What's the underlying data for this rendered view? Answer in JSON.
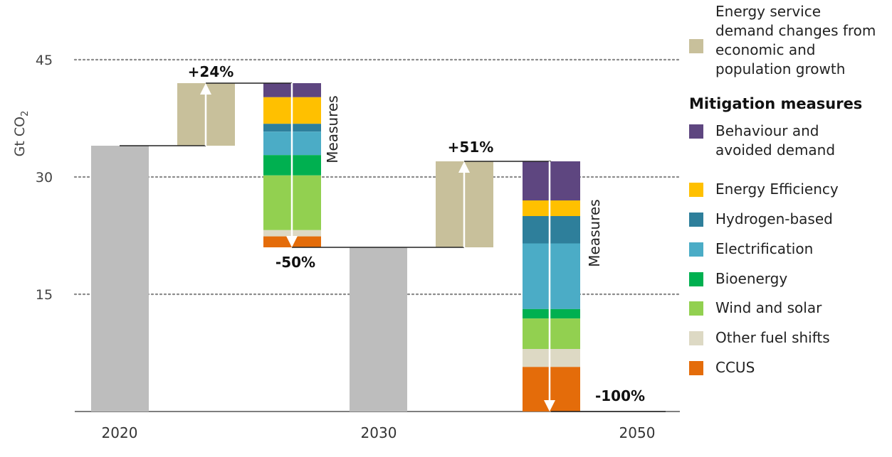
{
  "chart_data": {
    "type": "waterfall",
    "title": "",
    "ylabel": "Gt CO",
    "ylabel_sub": "2",
    "ylim": [
      0,
      45
    ],
    "yticks": [
      15,
      30,
      45
    ],
    "grid": "dotted",
    "x_labels": [
      "2020",
      "2030",
      "2050"
    ],
    "bars": [
      {
        "name": "2020",
        "type": "total",
        "value": 34
      },
      {
        "name": "growth-2030",
        "type": "increase",
        "from": 34,
        "to": 42,
        "label": "+24%"
      },
      {
        "name": "measures-2030",
        "type": "reduction",
        "from": 42,
        "to": 21,
        "label": "-50%",
        "side_label": "Measures",
        "segments": [
          {
            "key": "behaviour",
            "value": 1.8
          },
          {
            "key": "efficiency",
            "value": 3.4
          },
          {
            "key": "hydrogen",
            "value": 1.0
          },
          {
            "key": "electrification",
            "value": 3.0
          },
          {
            "key": "bioenergy",
            "value": 2.6
          },
          {
            "key": "wind_solar",
            "value": 7.0
          },
          {
            "key": "other",
            "value": 0.8
          },
          {
            "key": "ccus",
            "value": 1.4
          }
        ]
      },
      {
        "name": "2030",
        "type": "total",
        "value": 21
      },
      {
        "name": "growth-2050",
        "type": "increase",
        "from": 21,
        "to": 32,
        "label": "+51%"
      },
      {
        "name": "measures-2050",
        "type": "reduction",
        "from": 32,
        "to": 0,
        "label": "-100%",
        "side_label": "Measures",
        "segments": [
          {
            "key": "behaviour",
            "value": 5.0
          },
          {
            "key": "efficiency",
            "value": 2.0
          },
          {
            "key": "hydrogen",
            "value": 3.5
          },
          {
            "key": "electrification",
            "value": 8.4
          },
          {
            "key": "bioenergy",
            "value": 1.2
          },
          {
            "key": "wind_solar",
            "value": 3.9
          },
          {
            "key": "other",
            "value": 2.3
          },
          {
            "key": "ccus",
            "value": 5.7
          }
        ]
      }
    ]
  },
  "colors": {
    "total": "#bdbdbd",
    "growth": "#c8c09b",
    "behaviour": "#5e4680",
    "efficiency": "#ffc000",
    "hydrogen": "#2e7f9b",
    "electrification": "#4bacc6",
    "bioenergy": "#00b050",
    "wind_solar": "#92d050",
    "other": "#ddd9c4",
    "ccus": "#e46c0a"
  },
  "legend": {
    "growth_label": "Energy service demand changes from economic and population growth",
    "group_title": "Mitigation measures",
    "items": [
      {
        "key": "behaviour",
        "label": "Behaviour and avoided demand",
        "icon": "square"
      },
      {
        "key": "efficiency",
        "label": "Energy Efficiency",
        "icon": "square"
      },
      {
        "key": "hydrogen",
        "label": "Hydrogen-based",
        "icon": "square"
      },
      {
        "key": "electrification",
        "label": "Electrification",
        "icon": "square"
      },
      {
        "key": "bioenergy",
        "label": "Bioenergy",
        "icon": "square"
      },
      {
        "key": "wind_solar",
        "label": "Wind and solar",
        "icon": "square"
      },
      {
        "key": "other",
        "label": "Other fuel shifts",
        "icon": "square"
      },
      {
        "key": "ccus",
        "label": "CCUS",
        "icon": "square"
      }
    ]
  }
}
